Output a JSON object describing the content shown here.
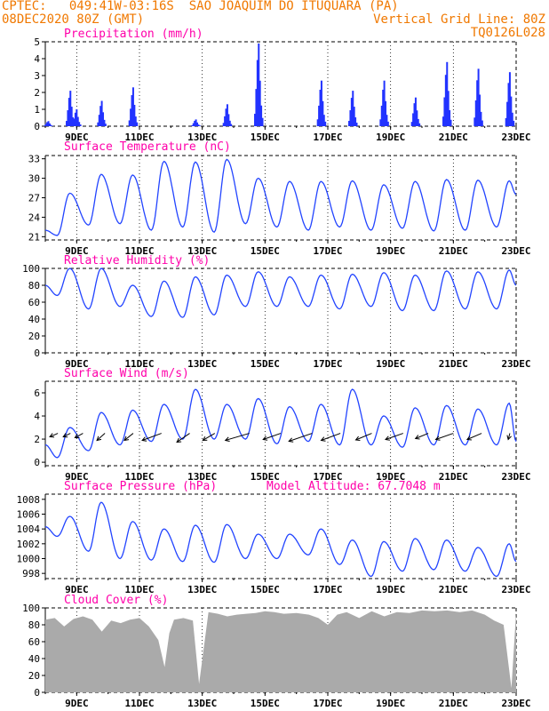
{
  "header": {
    "line1": "CPTEC:   049:41W-03:16S  SAO JOAQUIM DO ITUQUARA (PA)",
    "line2_left": "08DEC2020 80Z (GMT)",
    "line2_right": "Vertical Grid Line: 80Z",
    "line3_right": "TQ0126L028",
    "color": "#f07800"
  },
  "colors": {
    "title": "#ff00aa",
    "series": "#2244ff",
    "bar": "#2233ff",
    "cloud": "#aaaaaa",
    "wind_arrow": "#000000"
  },
  "chart_data": [
    {
      "type": "bar",
      "title": "Precipitation (mm/h)",
      "x_tick_labels": [
        "9DEC",
        "11DEC",
        "13DEC",
        "15DEC",
        "17DEC",
        "19DEC",
        "21DEC",
        "23DEC"
      ],
      "y_ticks": [
        0,
        1,
        2,
        3,
        4,
        5
      ],
      "ylim": [
        0,
        5
      ],
      "events": [
        {
          "day": 8.1,
          "peak": 0.3
        },
        {
          "day": 8.8,
          "peak": 2.1
        },
        {
          "day": 9.0,
          "peak": 1.0
        },
        {
          "day": 9.8,
          "peak": 1.5
        },
        {
          "day": 10.8,
          "peak": 2.3
        },
        {
          "day": 12.8,
          "peak": 0.4
        },
        {
          "day": 13.8,
          "peak": 1.3
        },
        {
          "day": 14.8,
          "peak": 4.9
        },
        {
          "day": 16.8,
          "peak": 2.7
        },
        {
          "day": 17.8,
          "peak": 2.1
        },
        {
          "day": 18.8,
          "peak": 2.7
        },
        {
          "day": 19.8,
          "peak": 1.7
        },
        {
          "day": 20.8,
          "peak": 3.8
        },
        {
          "day": 21.8,
          "peak": 3.4
        },
        {
          "day": 22.8,
          "peak": 3.2
        }
      ]
    },
    {
      "type": "line",
      "title": "Surface Temperature (nC)",
      "x_tick_labels": [
        "9DEC",
        "11DEC",
        "13DEC",
        "15DEC",
        "17DEC",
        "19DEC",
        "21DEC",
        "23DEC"
      ],
      "y_ticks": [
        21,
        24,
        27,
        30,
        33
      ],
      "ylim": [
        20.5,
        33.5
      ],
      "start": {
        "day": 8.0,
        "value": 22.0
      },
      "daily_min": [
        21.2,
        22.8,
        23.0,
        22.0,
        22.5,
        21.7,
        23.0,
        22.5,
        22.0,
        22.5,
        22.0,
        22.3,
        21.9,
        22.0,
        22.5
      ],
      "daily_max": [
        27.7,
        30.6,
        30.5,
        32.6,
        32.5,
        32.9,
        30.0,
        29.5,
        29.5,
        29.6,
        29.0,
        29.5,
        29.8,
        29.7,
        29.6
      ],
      "end": {
        "day": 23.0,
        "value": 27.5
      }
    },
    {
      "type": "line",
      "title": "Relative Humidity (%)",
      "x_tick_labels": [
        "9DEC",
        "11DEC",
        "13DEC",
        "15DEC",
        "17DEC",
        "19DEC",
        "21DEC",
        "23DEC"
      ],
      "y_ticks": [
        0,
        20,
        40,
        60,
        80,
        100
      ],
      "ylim": [
        0,
        100
      ],
      "start": {
        "day": 8.0,
        "value": 80
      },
      "daily_min": [
        68,
        52,
        55,
        43,
        42,
        45,
        55,
        55,
        55,
        52,
        55,
        50,
        50,
        52,
        52
      ],
      "daily_max": [
        100,
        100,
        80,
        85,
        90,
        92,
        96,
        90,
        92,
        93,
        95,
        92,
        97,
        96,
        98
      ],
      "end": {
        "day": 23.0,
        "value": 80
      }
    },
    {
      "type": "line",
      "title": "Surface Wind (m/s)",
      "x_tick_labels": [
        "9DEC",
        "11DEC",
        "13DEC",
        "15DEC",
        "17DEC",
        "19DEC",
        "21DEC",
        "23DEC"
      ],
      "y_ticks": [
        0,
        2,
        4,
        6
      ],
      "ylim": [
        -0.3,
        7
      ],
      "start": {
        "day": 8.0,
        "value": 1.5
      },
      "daily_min": [
        0.4,
        1.0,
        1.5,
        1.8,
        2.0,
        2.0,
        2.0,
        1.6,
        1.8,
        1.5,
        1.5,
        1.3,
        1.5,
        1.5,
        1.5
      ],
      "daily_max": [
        3.0,
        4.3,
        4.5,
        5.0,
        6.3,
        5.0,
        5.5,
        4.8,
        5.0,
        6.3,
        4.0,
        4.7,
        4.9,
        4.6,
        5.1
      ],
      "end": {
        "day": 23.0,
        "value": 1.8
      },
      "wind_vectors": [
        {
          "day": 8.4,
          "u": 1.0,
          "v": 0.8
        },
        {
          "day": 8.8,
          "u": 0.9,
          "v": 0.8
        },
        {
          "day": 9.2,
          "u": 1.0,
          "v": 1.0
        },
        {
          "day": 9.9,
          "u": 1.0,
          "v": 1.6
        },
        {
          "day": 10.8,
          "u": 1.1,
          "v": 1.6
        },
        {
          "day": 11.7,
          "u": 2.4,
          "v": 1.6
        },
        {
          "day": 12.6,
          "u": 1.6,
          "v": 2.0
        },
        {
          "day": 13.4,
          "u": 1.5,
          "v": 1.6
        },
        {
          "day": 14.5,
          "u": 3.0,
          "v": 1.6
        },
        {
          "day": 15.5,
          "u": 2.2,
          "v": 1.4
        },
        {
          "day": 16.5,
          "u": 2.9,
          "v": 1.8
        },
        {
          "day": 17.4,
          "u": 2.4,
          "v": 1.6
        },
        {
          "day": 18.4,
          "u": 2.0,
          "v": 1.5
        },
        {
          "day": 19.4,
          "u": 2.2,
          "v": 1.4
        },
        {
          "day": 20.2,
          "u": 1.6,
          "v": 1.2
        },
        {
          "day": 21.0,
          "u": 2.2,
          "v": 1.4
        },
        {
          "day": 21.9,
          "u": 1.8,
          "v": 1.4
        },
        {
          "day": 22.8,
          "u": 0.2,
          "v": 1.4
        }
      ]
    },
    {
      "type": "line",
      "title": "Surface Pressure (hPa)",
      "subtitle": "Model Altitude: 67.7048 m",
      "x_tick_labels": [
        "9DEC",
        "11DEC",
        "13DEC",
        "15DEC",
        "17DEC",
        "19DEC",
        "21DEC",
        "23DEC"
      ],
      "y_ticks": [
        998,
        1000,
        1002,
        1004,
        1006,
        1008
      ],
      "ylim": [
        997.3,
        1008.7
      ],
      "start": {
        "day": 8.0,
        "value": 1004.3
      },
      "daily_min": [
        1003.0,
        1001.0,
        1000.0,
        999.8,
        999.6,
        999.5,
        1000.0,
        1000.0,
        1000.5,
        999.2,
        997.6,
        998.3,
        998.5,
        998.3,
        997.6
      ],
      "daily_max": [
        1005.7,
        1007.6,
        1005.0,
        1004.0,
        1004.5,
        1004.6,
        1003.3,
        1003.3,
        1004.0,
        1002.5,
        1002.3,
        1002.7,
        1002.5,
        1001.5,
        1002.0
      ],
      "end": {
        "day": 23.0,
        "value": 999.6
      }
    },
    {
      "type": "area",
      "title": "Cloud Cover (%)",
      "x_tick_labels": [
        "9DEC",
        "11DEC",
        "13DEC",
        "15DEC",
        "17DEC",
        "19DEC",
        "21DEC",
        "23DEC"
      ],
      "y_ticks": [
        0,
        20,
        40,
        60,
        80,
        100
      ],
      "ylim": [
        0,
        100
      ],
      "x": [
        8.0,
        8.3,
        8.6,
        8.9,
        9.2,
        9.5,
        9.8,
        10.1,
        10.4,
        10.7,
        11.0,
        11.3,
        11.6,
        11.8,
        11.95,
        12.1,
        12.4,
        12.7,
        12.9,
        13.2,
        13.5,
        13.8,
        14.1,
        14.4,
        14.7,
        15.0,
        15.3,
        15.6,
        16.0,
        16.4,
        16.7,
        17.0,
        17.3,
        17.6,
        18.0,
        18.4,
        18.8,
        19.2,
        19.6,
        20.0,
        20.4,
        20.8,
        21.2,
        21.6,
        22.0,
        22.3,
        22.6,
        22.85,
        23.0
      ],
      "values": [
        86,
        88,
        78,
        87,
        90,
        86,
        72,
        85,
        82,
        86,
        88,
        78,
        62,
        30,
        70,
        86,
        88,
        85,
        10,
        95,
        93,
        90,
        92,
        93,
        94,
        96,
        95,
        93,
        94,
        92,
        88,
        80,
        92,
        95,
        88,
        96,
        90,
        95,
        94,
        97,
        96,
        97,
        95,
        97,
        92,
        85,
        80,
        5,
        95
      ]
    }
  ]
}
